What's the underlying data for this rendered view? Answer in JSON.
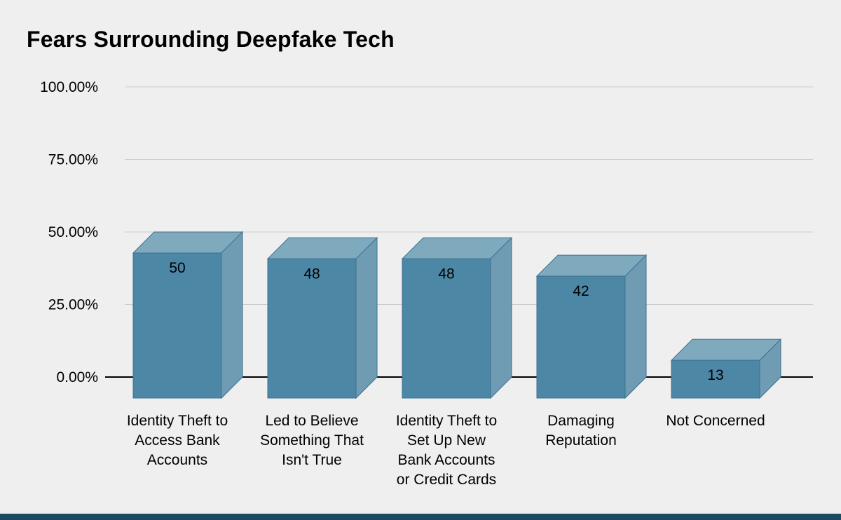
{
  "page": {
    "background_color": "#efefef",
    "footer_bar_color": "#1b4b60"
  },
  "chart_data": {
    "type": "bar",
    "style": "3d-column",
    "title": "Fears Surrounding Deepfake Tech",
    "categories": [
      "Identity Theft to Access Bank Accounts",
      "Led to Believe Something That Isn't True",
      "Identity Theft to Set Up New Bank Accounts or Credit Cards",
      "Damaging Reputation",
      "Not Concerned"
    ],
    "category_lines": [
      [
        "Identity Theft to",
        "Access Bank",
        "Accounts"
      ],
      [
        "Led to Believe",
        "Something That",
        "Isn't True"
      ],
      [
        "Identity Theft to",
        "Set Up New",
        "Bank Accounts",
        "or Credit Cards"
      ],
      [
        "Damaging",
        "Reputation"
      ],
      [
        "Not Concerned"
      ]
    ],
    "values": [
      50,
      48,
      48,
      42,
      13
    ],
    "value_labels": [
      "50",
      "48",
      "48",
      "42",
      "13"
    ],
    "unit": "percent",
    "xlabel": "",
    "ylabel": "",
    "ylim": [
      0,
      100
    ],
    "yticks": [
      {
        "value": 100,
        "label": "100.00%"
      },
      {
        "value": 75,
        "label": "75.00%"
      },
      {
        "value": 50,
        "label": "50.00%"
      },
      {
        "value": 25,
        "label": "25.00%"
      },
      {
        "value": 0,
        "label": "0.00%"
      }
    ],
    "grid": true,
    "legend": "none",
    "colors": {
      "bar_front": "#4d87a6",
      "bar_top": "#7fa9bd",
      "bar_side": "#6f9cb2",
      "bar_edge": "#3d7191",
      "gridline": "#cccccc",
      "axis_line": "#000000",
      "text": "#000000"
    }
  }
}
